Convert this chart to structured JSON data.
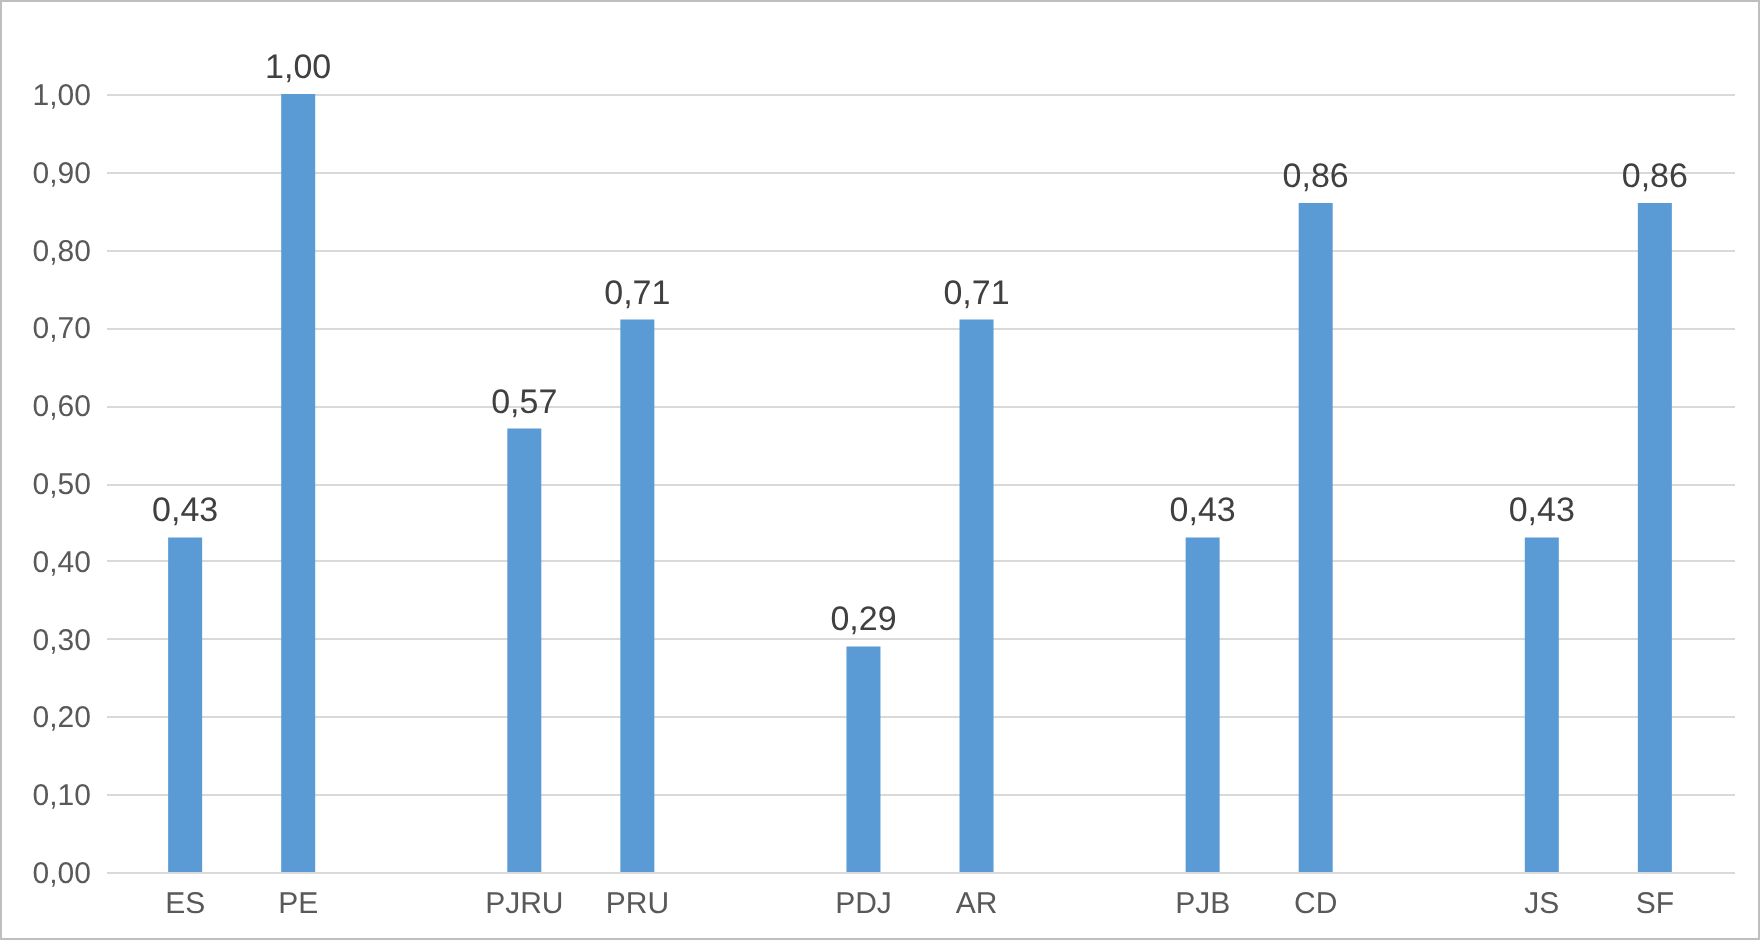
{
  "chart_data": {
    "type": "bar",
    "categories": [
      "ES",
      "PE",
      null,
      "PJRU",
      "PRU",
      null,
      "PDJ",
      "AR",
      null,
      "PJB",
      "CD",
      null,
      "JS",
      "SF"
    ],
    "values": [
      0.43,
      1.0,
      null,
      0.57,
      0.71,
      null,
      0.29,
      0.71,
      null,
      0.43,
      0.86,
      null,
      0.43,
      0.86
    ],
    "value_labels": [
      "0,43",
      "1,00",
      null,
      "0,57",
      "0,71",
      null,
      "0,29",
      "0,71",
      null,
      "0,43",
      "0,86",
      null,
      "0,43",
      "0,86"
    ],
    "color": "#5b9bd5",
    "ylim": [
      0,
      1
    ],
    "yticks": [
      {
        "value": 0,
        "label": "0,00"
      },
      {
        "value": 0.1,
        "label": "0,10"
      },
      {
        "value": 0.2,
        "label": "0,20"
      },
      {
        "value": 0.3,
        "label": "0,30"
      },
      {
        "value": 0.4,
        "label": "0,40"
      },
      {
        "value": 0.5,
        "label": "0,50"
      },
      {
        "value": 0.6,
        "label": "0,60"
      },
      {
        "value": 0.7,
        "label": "0,70"
      },
      {
        "value": 0.8,
        "label": "0,80"
      },
      {
        "value": 0.9,
        "label": "0,90"
      },
      {
        "value": 1,
        "label": "1,00"
      }
    ],
    "grid": "y"
  }
}
